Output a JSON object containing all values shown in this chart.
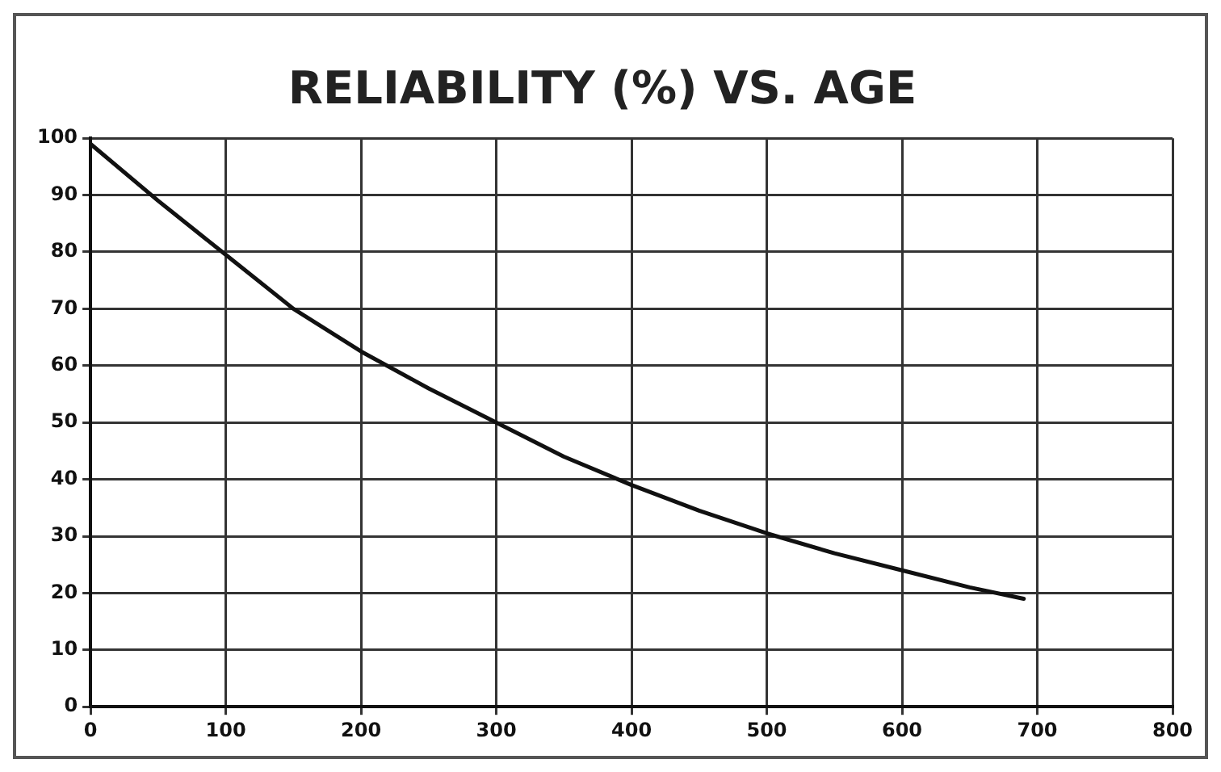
{
  "chart_data": {
    "type": "line",
    "title": "RELIABILITY (%) VS. AGE",
    "x": [
      0,
      50,
      100,
      150,
      200,
      250,
      300,
      350,
      400,
      450,
      500,
      550,
      600,
      650,
      690
    ],
    "series": [
      {
        "color": "#111111",
        "values": [
          99,
          89,
          79.5,
          70,
          62.5,
          56,
          50,
          44,
          39,
          34.5,
          30.5,
          27,
          24,
          21,
          19
        ]
      }
    ],
    "xlim": [
      0,
      800
    ],
    "xticks": [
      0,
      100,
      200,
      300,
      400,
      500,
      600,
      700,
      800
    ],
    "ylim": [
      0,
      100
    ],
    "yticks": [
      0,
      10,
      20,
      30,
      40,
      50,
      60,
      70,
      80,
      90,
      100
    ],
    "grid": true,
    "legend": false,
    "marker": "none",
    "line_style": "solid"
  }
}
